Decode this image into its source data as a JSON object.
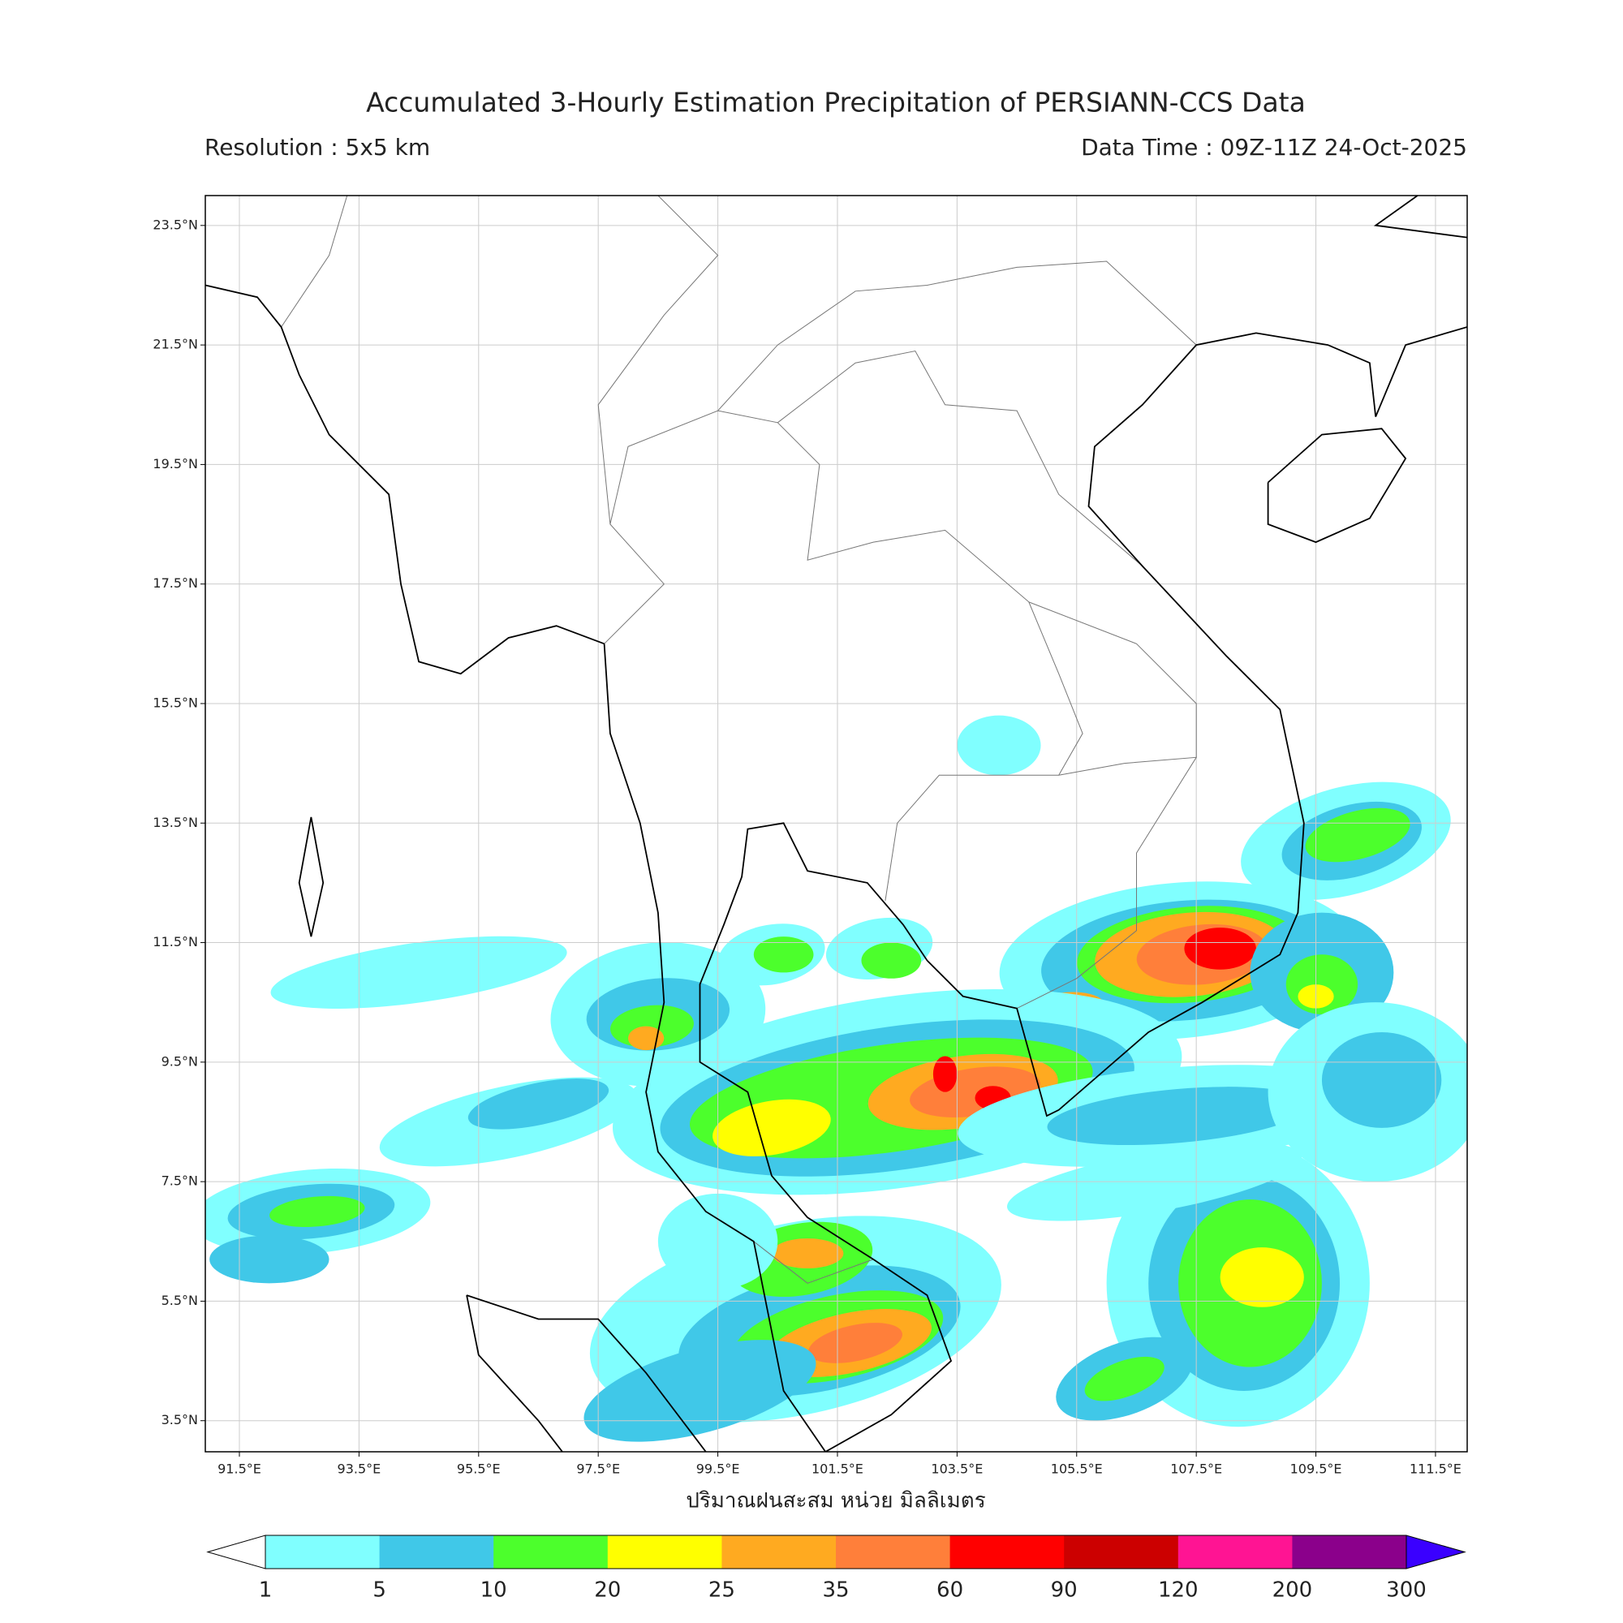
{
  "header": {
    "title": "Accumulated 3-Hourly Estimation Precipitation of PERSIANN-CCS Data",
    "resolution": "Resolution : 5x5 km",
    "data_time": "Data Time : 09Z-11Z 24-Oct-2025"
  },
  "map": {
    "lon_range": [
      90.93,
      112.03
    ],
    "lat_range": [
      2.98,
      24.0
    ],
    "grid": true,
    "lon_ticks": [
      {
        "value": 91.5,
        "label": "91.5°E"
      },
      {
        "value": 93.5,
        "label": "93.5°E"
      },
      {
        "value": 95.5,
        "label": "95.5°E"
      },
      {
        "value": 97.5,
        "label": "97.5°E"
      },
      {
        "value": 99.5,
        "label": "99.5°E"
      },
      {
        "value": 101.5,
        "label": "101.5°E"
      },
      {
        "value": 103.5,
        "label": "103.5°E"
      },
      {
        "value": 105.5,
        "label": "105.5°E"
      },
      {
        "value": 107.5,
        "label": "107.5°E"
      },
      {
        "value": 109.5,
        "label": "109.5°E"
      },
      {
        "value": 111.5,
        "label": "111.5°E"
      }
    ],
    "lat_ticks": [
      {
        "value": 23.5,
        "label": "23.5°N"
      },
      {
        "value": 21.5,
        "label": "21.5°N"
      },
      {
        "value": 19.5,
        "label": "19.5°N"
      },
      {
        "value": 17.5,
        "label": "17.5°N"
      },
      {
        "value": 15.5,
        "label": "15.5°N"
      },
      {
        "value": 13.5,
        "label": "13.5°N"
      },
      {
        "value": 11.5,
        "label": "11.5°N"
      },
      {
        "value": 9.5,
        "label": "9.5°N"
      },
      {
        "value": 7.5,
        "label": "7.5°N"
      },
      {
        "value": 5.5,
        "label": "5.5°N"
      },
      {
        "value": 3.5,
        "label": "3.5°N"
      }
    ]
  },
  "colorbar": {
    "label": "ปริมาณฝนสะสม หน่วย มิลลิเมตร",
    "boundaries": [
      1,
      5,
      10,
      20,
      25,
      35,
      60,
      90,
      120,
      200,
      300
    ],
    "colors": [
      "#80ffff",
      "#40c8e8",
      "#4cff2c",
      "#ffff00",
      "#ffaa20",
      "#ff7f3a",
      "#ff0000",
      "#cc0000",
      "#ff1493",
      "#8b008b"
    ],
    "under_color": "#ffffff",
    "over_color": "#3a00ff"
  }
}
